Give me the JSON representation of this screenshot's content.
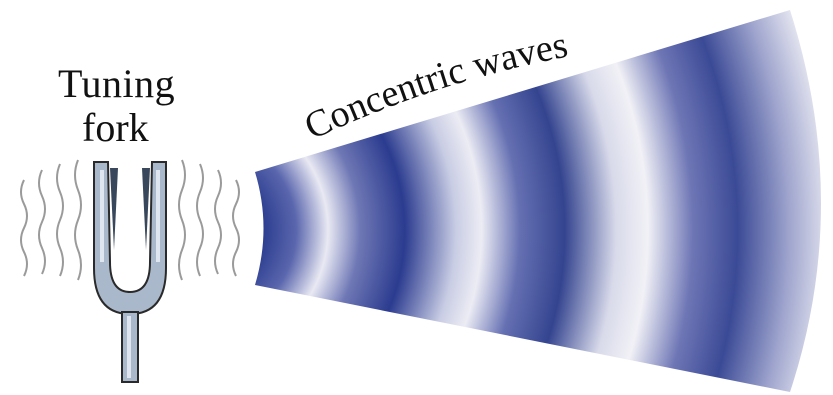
{
  "labels": {
    "fork_line1": "Tuning",
    "fork_line2": "fork",
    "waves": "Concentric waves"
  },
  "colors": {
    "wave_dark": "#1c2f86",
    "wave_mid": "#5a66ad",
    "wave_light": "#e9e9f3",
    "fork_fill": "#aab8cc",
    "fork_outline": "#2a2a2a",
    "vibration_lines": "#9a9a9a"
  }
}
